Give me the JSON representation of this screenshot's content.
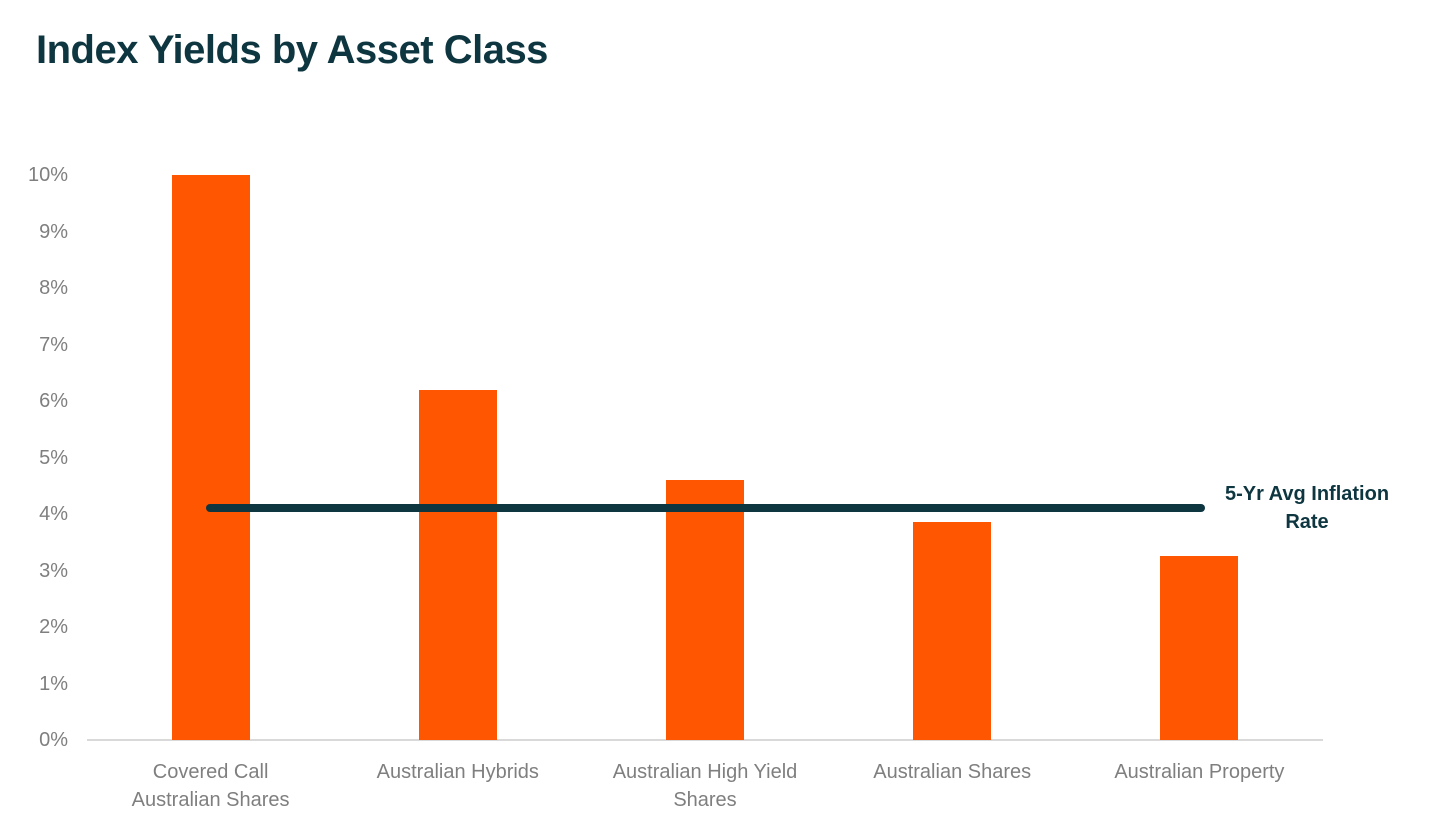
{
  "colors": {
    "bar": "#ff5601",
    "teal": "#0d3640",
    "axis_text": "#7f7f7f",
    "baseline": "#d9d9d9",
    "background": "#ffffff"
  },
  "chart_data": {
    "type": "bar",
    "title": "Index Yields by Asset Class",
    "unit": "%",
    "categories": [
      "Covered Call Australian Shares",
      "Australian Hybrids",
      "Australian High Yield Shares",
      "Australian Shares",
      "Australian Property"
    ],
    "category_label_lines": [
      [
        "Covered Call",
        "Australian Shares"
      ],
      [
        "Australian Hybrids"
      ],
      [
        "Australian High Yield",
        "Shares"
      ],
      [
        "Australian Shares"
      ],
      [
        "Australian Property"
      ]
    ],
    "values": [
      10.0,
      6.2,
      4.6,
      3.85,
      3.25
    ],
    "xlabel": "",
    "ylabel": "",
    "ylim": [
      0,
      10
    ],
    "y_tick_labels": [
      "0%",
      "1%",
      "2%",
      "3%",
      "4%",
      "5%",
      "6%",
      "7%",
      "8%",
      "9%",
      "10%"
    ],
    "grid": false,
    "legend": "none",
    "bar_color": "#ff5601",
    "reference_line": {
      "value": 4.1,
      "label": "5-Yr Avg Inflation Rate",
      "label_lines": [
        "5-Yr Avg Inflation",
        "Rate"
      ],
      "color": "#0d3640"
    }
  }
}
